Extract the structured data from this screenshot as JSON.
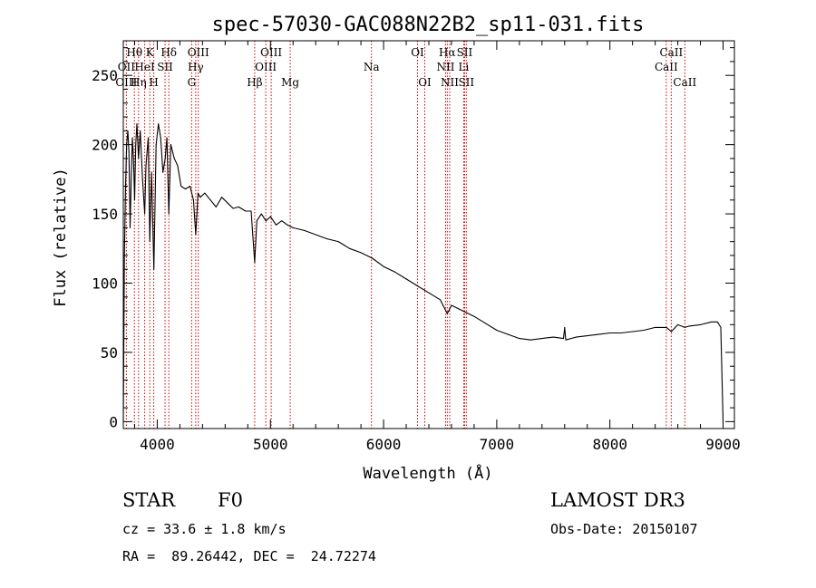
{
  "chart_data": {
    "type": "line",
    "title": "spec-57030-GAC088N22B2_sp11-031.fits",
    "xlabel": "Wavelength (Å)",
    "ylabel": "Flux (relative)",
    "xlim": [
      3700,
      9100
    ],
    "ylim": [
      -5,
      275
    ],
    "x_ticks": [
      4000,
      5000,
      6000,
      7000,
      8000,
      9000
    ],
    "y_ticks": [
      0,
      50,
      100,
      150,
      200,
      250
    ],
    "series": [
      {
        "name": "flux",
        "color": "#000000",
        "x": [
          3700,
          3710,
          3720,
          3730,
          3740,
          3750,
          3760,
          3770,
          3780,
          3790,
          3800,
          3810,
          3820,
          3835,
          3850,
          3870,
          3889,
          3900,
          3920,
          3934,
          3950,
          3970,
          3990,
          4010,
          4030,
          4050,
          4070,
          4085,
          4102,
          4120,
          4150,
          4180,
          4210,
          4250,
          4290,
          4320,
          4340,
          4360,
          4380,
          4420,
          4470,
          4520,
          4570,
          4620,
          4670,
          4720,
          4780,
          4830,
          4861,
          4880,
          4920,
          4960,
          5000,
          5050,
          5100,
          5150,
          5200,
          5300,
          5400,
          5500,
          5600,
          5700,
          5800,
          5900,
          6000,
          6100,
          6200,
          6300,
          6400,
          6500,
          6563,
          6600,
          6700,
          6800,
          6900,
          7000,
          7100,
          7200,
          7300,
          7400,
          7500,
          7590,
          7600,
          7610,
          7700,
          7800,
          7900,
          8000,
          8100,
          8200,
          8300,
          8400,
          8500,
          8542,
          8600,
          8662,
          8700,
          8800,
          8900,
          8950,
          8980,
          9000
        ],
        "y": [
          0,
          120,
          170,
          200,
          210,
          195,
          140,
          175,
          205,
          190,
          160,
          200,
          215,
          190,
          210,
          175,
          150,
          185,
          205,
          130,
          180,
          110,
          200,
          215,
          205,
          180,
          190,
          205,
          150,
          200,
          190,
          185,
          170,
          168,
          170,
          160,
          135,
          165,
          162,
          165,
          160,
          155,
          162,
          158,
          154,
          155,
          152,
          152,
          115,
          145,
          150,
          145,
          148,
          142,
          145,
          142,
          140,
          138,
          135,
          132,
          130,
          125,
          122,
          118,
          112,
          108,
          103,
          98,
          93,
          88,
          78,
          84,
          80,
          76,
          71,
          66,
          63,
          60,
          59,
          60,
          61,
          60,
          68,
          59,
          61,
          62,
          63,
          64,
          64,
          65,
          66,
          68,
          68,
          65,
          70,
          68,
          69,
          70,
          72,
          72,
          68,
          0
        ]
      }
    ],
    "spectral_lines": [
      {
        "label": "Hθ",
        "wavelength": 3798,
        "row": 1
      },
      {
        "label": "OII",
        "wavelength": 3727,
        "row": 2
      },
      {
        "label": "OIII",
        "wavelength": 3727,
        "row": 3
      },
      {
        "label": "Hη",
        "wavelength": 3835,
        "row": 3
      },
      {
        "label": "HeI",
        "wavelength": 3889,
        "row": 2
      },
      {
        "label": "K",
        "wavelength": 3934,
        "row": 1
      },
      {
        "label": "SII",
        "wavelength": 4069,
        "row": 2
      },
      {
        "label": "H",
        "wavelength": 3969,
        "row": 3
      },
      {
        "label": "Hδ",
        "wavelength": 4102,
        "row": 1
      },
      {
        "label": "OIII",
        "wavelength": 4363,
        "row": 1
      },
      {
        "label": "Hγ",
        "wavelength": 4340,
        "row": 2
      },
      {
        "label": "G",
        "wavelength": 4304,
        "row": 3
      },
      {
        "label": "OIII",
        "wavelength": 5007,
        "row": 1
      },
      {
        "label": "OIII",
        "wavelength": 4959,
        "row": 2
      },
      {
        "label": "Hβ",
        "wavelength": 4861,
        "row": 3
      },
      {
        "label": "Mg",
        "wavelength": 5175,
        "row": 3
      },
      {
        "label": "Na",
        "wavelength": 5893,
        "row": 2
      },
      {
        "label": "OI",
        "wavelength": 6300,
        "row": 1
      },
      {
        "label": "OI",
        "wavelength": 6364,
        "row": 3
      },
      {
        "label": "Hα",
        "wavelength": 6563,
        "row": 1
      },
      {
        "label": "SII",
        "wavelength": 6716,
        "row": 1
      },
      {
        "label": "NII",
        "wavelength": 6548,
        "row": 2
      },
      {
        "label": "Li",
        "wavelength": 6708,
        "row": 2
      },
      {
        "label": "NII",
        "wavelength": 6584,
        "row": 3
      },
      {
        "label": "SII",
        "wavelength": 6731,
        "row": 3
      },
      {
        "label": "CaII",
        "wavelength": 8542,
        "row": 1
      },
      {
        "label": "CaII",
        "wavelength": 8498,
        "row": 2
      },
      {
        "label": "CaII",
        "wavelength": 8662,
        "row": 3
      }
    ],
    "line_marker_color": "#cc0000"
  },
  "info": {
    "object_class": "STAR",
    "subclass": "F0",
    "survey": "LAMOST DR3",
    "redshift_line": "cz = 33.6 ± 1.8 km/s",
    "obs_date_line": "Obs-Date: 20150107",
    "coords_line": "RA =  89.26442, DEC =  24.72274"
  }
}
